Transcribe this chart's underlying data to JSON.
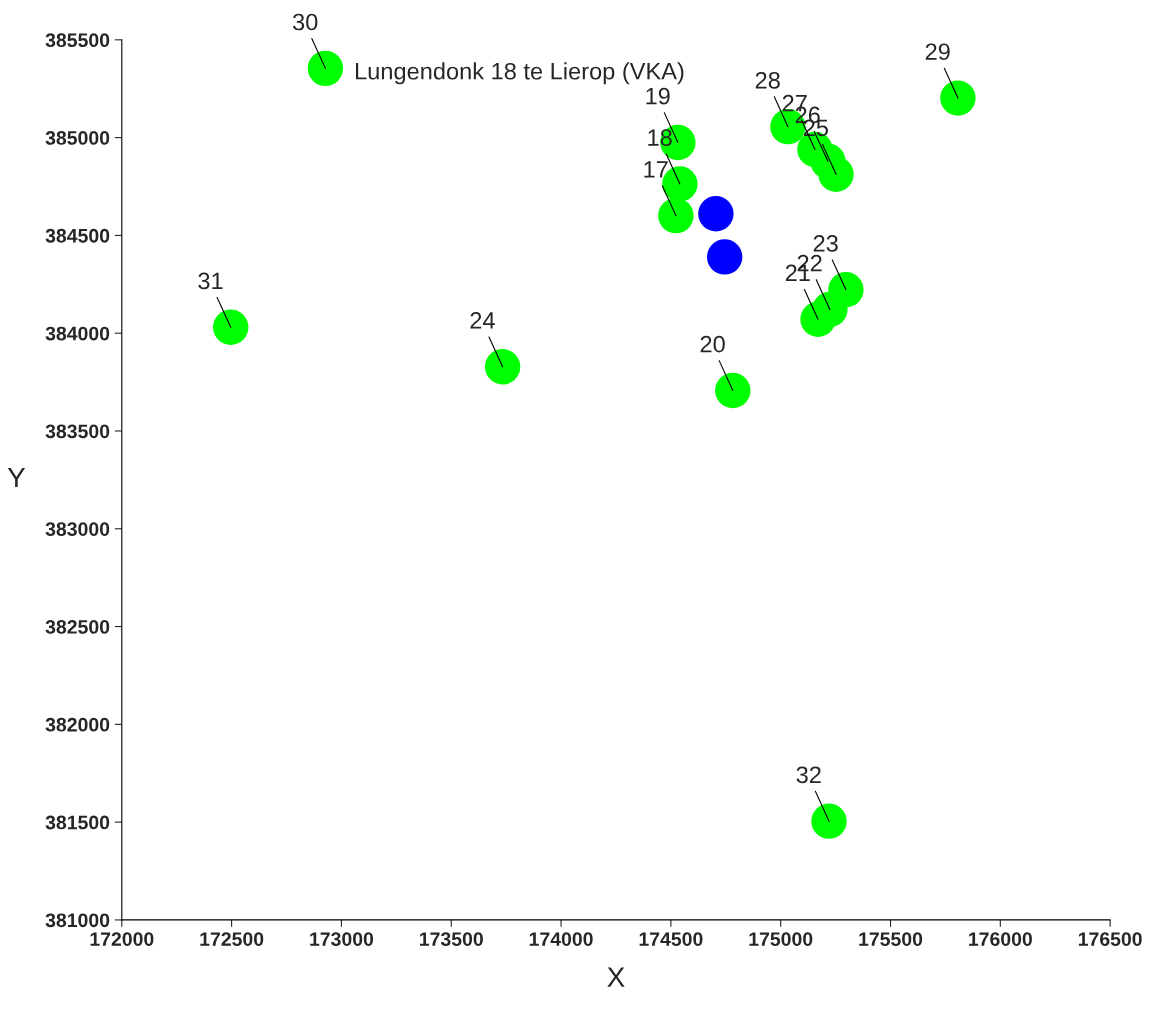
{
  "chart_data": {
    "type": "scatter",
    "xlabel": "X",
    "ylabel": "Y",
    "marker": "circle",
    "grid": false,
    "xlim": [
      172000,
      176500
    ],
    "xticks": [
      172000,
      172500,
      173000,
      173500,
      174000,
      174500,
      175000,
      175500,
      176000,
      176500
    ],
    "ylim": [
      381000,
      385500
    ],
    "yticks": [
      381000,
      381500,
      382000,
      382500,
      383000,
      383500,
      384000,
      384500,
      385000,
      385500
    ],
    "series": [
      {
        "color": "#0000ff",
        "x": [
          174705,
          174745
        ],
        "values": [
          384611,
          384390
        ]
      },
      {
        "color": "#00ff00",
        "x": [
          174523,
          174541,
          174532,
          174782,
          175170,
          175224,
          175297,
          173734,
          175252,
          175215,
          175156,
          175033,
          175807,
          172927,
          172496,
          175220
        ],
        "values": [
          384601,
          384763,
          384975,
          383707,
          384071,
          384121,
          384222,
          383828,
          384813,
          384879,
          384939,
          385056,
          385202,
          385354,
          384030,
          381505
        ]
      }
    ],
    "annotations": [
      {
        "text": "17",
        "x": 174523,
        "y": 384601
      },
      {
        "text": "18",
        "x": 174541,
        "y": 384763
      },
      {
        "text": "19",
        "x": 174532,
        "y": 384975
      },
      {
        "text": "20",
        "x": 174782,
        "y": 383707
      },
      {
        "text": "21",
        "x": 175170,
        "y": 384071
      },
      {
        "text": "22",
        "x": 175224,
        "y": 384121
      },
      {
        "text": "23",
        "x": 175297,
        "y": 384222
      },
      {
        "text": "24",
        "x": 173734,
        "y": 383828
      },
      {
        "text": "25",
        "x": 175252,
        "y": 384813
      },
      {
        "text": "26",
        "x": 175215,
        "y": 384879
      },
      {
        "text": "27",
        "x": 175156,
        "y": 384939
      },
      {
        "text": "28",
        "x": 175033,
        "y": 385056
      },
      {
        "text": "29",
        "x": 175807,
        "y": 385202
      },
      {
        "text": "30",
        "x": 172927,
        "y": 385354
      },
      {
        "text": "31",
        "x": 172496,
        "y": 384030
      },
      {
        "text": "32",
        "x": 175220,
        "y": 381505
      },
      "Lungendonk 18 te Lierop (VKA)"
    ]
  }
}
